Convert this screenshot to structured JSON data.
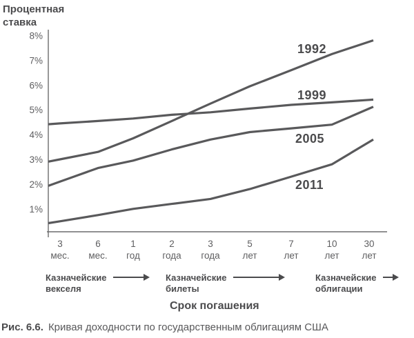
{
  "chart_data": {
    "type": "line",
    "ylabel": "Процентная ставка",
    "xlabel": "Срок погашения",
    "ylim": [
      0,
      8.5
    ],
    "grid": false,
    "legend": "inline-labels-on-lines",
    "line_color": "#59595b",
    "axis_color": "#6b6b6d",
    "yticks": [
      {
        "label": "1%",
        "value": 1
      },
      {
        "label": "2%",
        "value": 2
      },
      {
        "label": "3%",
        "value": 3
      },
      {
        "label": "4%",
        "value": 4
      },
      {
        "label": "5%",
        "value": 5
      },
      {
        "label": "6%",
        "value": 6
      },
      {
        "label": "7%",
        "value": 7
      },
      {
        "label": "8%",
        "value": 8
      }
    ],
    "categories": [
      "3 мес.",
      "6 мес.",
      "1 год",
      "2 года",
      "3 года",
      "5 лет",
      "7 лет",
      "10 лет",
      "30 лет"
    ],
    "category_lines": [
      [
        "3",
        "мес."
      ],
      [
        "6",
        "мес."
      ],
      [
        "1",
        "год"
      ],
      [
        "2",
        "года"
      ],
      [
        "3",
        "года"
      ],
      [
        "5",
        "лет"
      ],
      [
        "7",
        "лет"
      ],
      [
        "10",
        "лет"
      ],
      [
        "30",
        "лет"
      ]
    ],
    "series": [
      {
        "name": "1992",
        "values": [
          3.0,
          3.3,
          3.85,
          4.55,
          5.25,
          5.95,
          6.6,
          7.25,
          7.75
        ]
      },
      {
        "name": "1999",
        "values": [
          4.45,
          4.55,
          4.65,
          4.8,
          4.9,
          5.05,
          5.2,
          5.3,
          5.4
        ]
      },
      {
        "name": "2005",
        "values": [
          2.1,
          2.65,
          2.95,
          3.4,
          3.8,
          4.1,
          4.25,
          4.4,
          5.05
        ]
      },
      {
        "name": "2011",
        "values": [
          0.5,
          0.75,
          1.0,
          1.2,
          1.4,
          1.8,
          2.3,
          2.8,
          3.7
        ]
      }
    ]
  },
  "annotations": {
    "maturity_groups": [
      {
        "label_line1": "Казначейские",
        "label_line2": "векселя",
        "icon": "right-arrow"
      },
      {
        "label_line1": "Казначейские",
        "label_line2": "билеты",
        "icon": "right-arrow"
      },
      {
        "label_line1": "Казначейские",
        "label_line2": "облигации",
        "icon": "right-arrow"
      }
    ]
  },
  "caption": {
    "prefix": "Рис. 6.6.",
    "text": "Кривая доходности по государственным облигациям США"
  },
  "colors": {
    "line": "#59595b",
    "axis": "#6b6b6d",
    "text_dark": "#4b4b4d",
    "text_gray": "#5e5e60"
  }
}
